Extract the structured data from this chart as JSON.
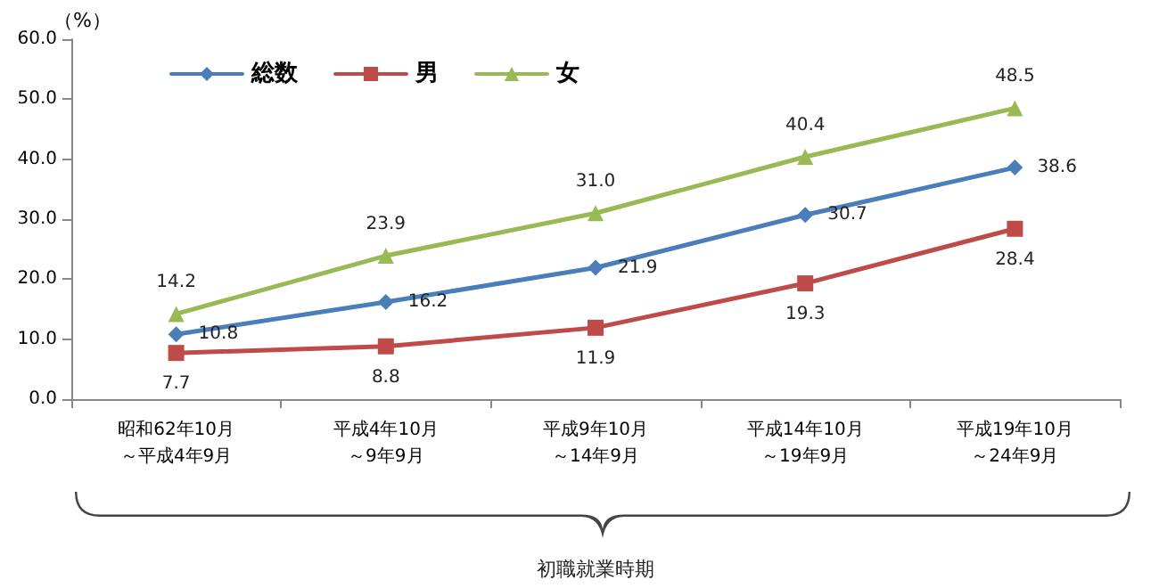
{
  "chart_data": {
    "type": "line",
    "xlabel": "初職就業時期",
    "ylabel": "（%）",
    "categories": [
      "昭和62年10月～平成4年9月",
      "平成4年10月～9年9月",
      "平成9年10月～14年9月",
      "平成14年10月～19年9月",
      "平成19年10月～24年9月"
    ],
    "series": [
      {
        "name": "総数",
        "color": "#4a7ebb",
        "marker": "diamond",
        "values": [
          10.8,
          16.2,
          21.9,
          30.7,
          38.6
        ],
        "value_labels": [
          "10.8",
          "16.2",
          "21.9",
          "30.7",
          "38.6"
        ]
      },
      {
        "name": "男",
        "color": "#be4b48",
        "marker": "square",
        "values": [
          7.7,
          8.8,
          11.9,
          19.3,
          28.4
        ],
        "value_labels": [
          "7.7",
          "8.8",
          "11.9",
          "19.3",
          "28.4"
        ]
      },
      {
        "name": "女",
        "color": "#98b954",
        "marker": "triangle",
        "values": [
          14.2,
          23.9,
          31.0,
          40.4,
          48.5
        ],
        "value_labels": [
          "14.2",
          "23.9",
          "31.0",
          "40.4",
          "48.5"
        ]
      }
    ],
    "ylim": [
      0,
      60
    ],
    "yticks": [
      {
        "value": 0,
        "label": "0.0"
      },
      {
        "value": 10,
        "label": "10.0"
      },
      {
        "value": 20,
        "label": "20.0"
      },
      {
        "value": 30,
        "label": "30.0"
      },
      {
        "value": 40,
        "label": "40.0"
      },
      {
        "value": 50,
        "label": "50.0"
      },
      {
        "value": 60,
        "label": "60.0"
      }
    ],
    "grid": false,
    "legend": "top left"
  }
}
